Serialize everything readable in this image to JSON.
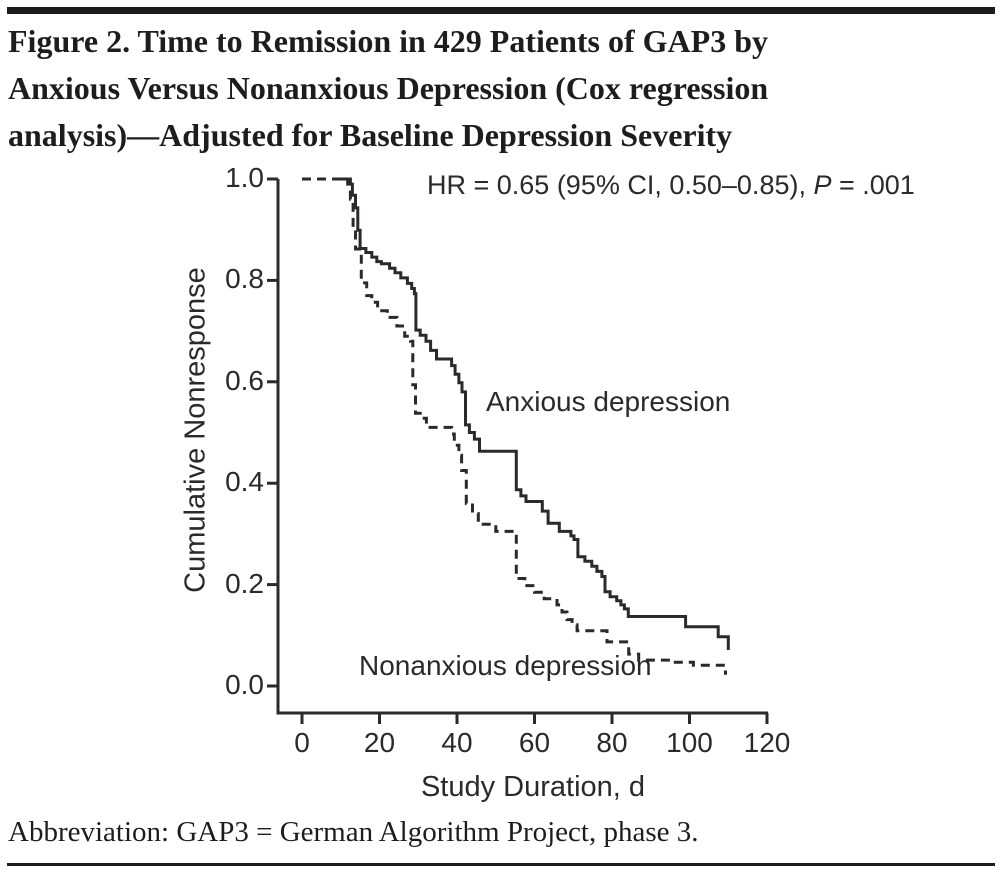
{
  "title": "Figure 2. Time to Remission in 429 Patients of GAP3 by Anxious Versus Nonanxious Depression (Cox regression analysis)—Adjusted for Baseline Depression Severity",
  "title_lines": [
    "Figure 2. Time to Remission in 429 Patients of GAP3 by",
    "Anxious Versus Nonanxious Depression (Cox regression",
    "analysis)—Adjusted for Baseline Depression Severity"
  ],
  "annotation": {
    "full": "HR = 0.65 (95% CI, 0.50–0.85), P = .001",
    "prefix": "HR = 0.65 (95% CI, 0.50–0.85), ",
    "p_label": "P",
    "suffix": " = .001"
  },
  "footnote": "Abbreviation: GAP3 = German Algorithm Project, phase 3.",
  "colors": {
    "ink": "#2b2a29",
    "rule": "#1c1c1c",
    "background": "#ffffff"
  },
  "chart_data": {
    "type": "line",
    "subtype": "step-survival-curves",
    "title": "",
    "xlabel": "Study Duration, d",
    "ylabel": "Cumulative Nonresponse",
    "xlim": [
      0,
      120
    ],
    "ylim": [
      0.0,
      1.0
    ],
    "x_ticks": [
      0,
      20,
      40,
      60,
      80,
      100,
      120
    ],
    "y_ticks": [
      0.0,
      0.2,
      0.4,
      0.6,
      0.8,
      1.0
    ],
    "grid": false,
    "legend_position": "inline-labels",
    "series": [
      {
        "name": "Anxious depression",
        "style": "solid",
        "points": [
          [
            9,
            1.0
          ],
          [
            11.8,
            0.99
          ],
          [
            13,
            0.968
          ],
          [
            13.8,
            0.943
          ],
          [
            14.4,
            0.899
          ],
          [
            15,
            0.863
          ],
          [
            16.5,
            0.855
          ],
          [
            18,
            0.846
          ],
          [
            19.3,
            0.837
          ],
          [
            20.5,
            0.833
          ],
          [
            22.6,
            0.824
          ],
          [
            24,
            0.815
          ],
          [
            25.5,
            0.805
          ],
          [
            27.2,
            0.794
          ],
          [
            28.3,
            0.784
          ],
          [
            29,
            0.774
          ],
          [
            29.4,
            0.702
          ],
          [
            30.5,
            0.692
          ],
          [
            32,
            0.68
          ],
          [
            33.2,
            0.662
          ],
          [
            34.7,
            0.645
          ],
          [
            38.6,
            0.632
          ],
          [
            39.5,
            0.615
          ],
          [
            40.5,
            0.598
          ],
          [
            41.3,
            0.58
          ],
          [
            42.2,
            0.515
          ],
          [
            43.2,
            0.5
          ],
          [
            44.5,
            0.487
          ],
          [
            45.8,
            0.463
          ],
          [
            55.3,
            0.387
          ],
          [
            56.5,
            0.375
          ],
          [
            57.8,
            0.364
          ],
          [
            62,
            0.345
          ],
          [
            63.5,
            0.321
          ],
          [
            66.4,
            0.305
          ],
          [
            69.4,
            0.296
          ],
          [
            70.2,
            0.289
          ],
          [
            71.2,
            0.255
          ],
          [
            73,
            0.246
          ],
          [
            74.8,
            0.236
          ],
          [
            76.1,
            0.226
          ],
          [
            77.4,
            0.216
          ],
          [
            78.2,
            0.186
          ],
          [
            79.5,
            0.176
          ],
          [
            81.2,
            0.168
          ],
          [
            82.3,
            0.16
          ],
          [
            83.2,
            0.152
          ],
          [
            84.2,
            0.137
          ],
          [
            99,
            0.117
          ],
          [
            107.4,
            0.097
          ],
          [
            110,
            0.071
          ]
        ]
      },
      {
        "name": "Nonanxious depression",
        "style": "dashed",
        "points": [
          [
            0,
            1.0
          ],
          [
            12.5,
            0.96
          ],
          [
            13.2,
            0.9
          ],
          [
            13.8,
            0.862
          ],
          [
            15.3,
            0.795
          ],
          [
            16.7,
            0.77
          ],
          [
            18,
            0.757
          ],
          [
            19.5,
            0.74
          ],
          [
            22,
            0.727
          ],
          [
            24.5,
            0.71
          ],
          [
            26.5,
            0.69
          ],
          [
            28,
            0.68
          ],
          [
            28.6,
            0.594
          ],
          [
            29.3,
            0.538
          ],
          [
            30.5,
            0.528
          ],
          [
            32.1,
            0.51
          ],
          [
            38.6,
            0.497
          ],
          [
            39.3,
            0.475
          ],
          [
            40.5,
            0.455
          ],
          [
            41.2,
            0.425
          ],
          [
            42.4,
            0.36
          ],
          [
            44,
            0.34
          ],
          [
            45.5,
            0.319
          ],
          [
            50,
            0.305
          ],
          [
            55.3,
            0.212
          ],
          [
            57.5,
            0.198
          ],
          [
            60,
            0.185
          ],
          [
            62.5,
            0.172
          ],
          [
            65.8,
            0.16
          ],
          [
            67.1,
            0.146
          ],
          [
            68.4,
            0.131
          ],
          [
            69.7,
            0.121
          ],
          [
            71,
            0.109
          ],
          [
            78.7,
            0.087
          ],
          [
            84.3,
            0.063
          ],
          [
            86.9,
            0.051
          ],
          [
            95,
            0.047
          ],
          [
            101,
            0.041
          ],
          [
            109.3,
            0.022
          ]
        ]
      }
    ],
    "hr_annotation": "HR = 0.65 (95% CI, 0.50–0.85), P = .001"
  }
}
